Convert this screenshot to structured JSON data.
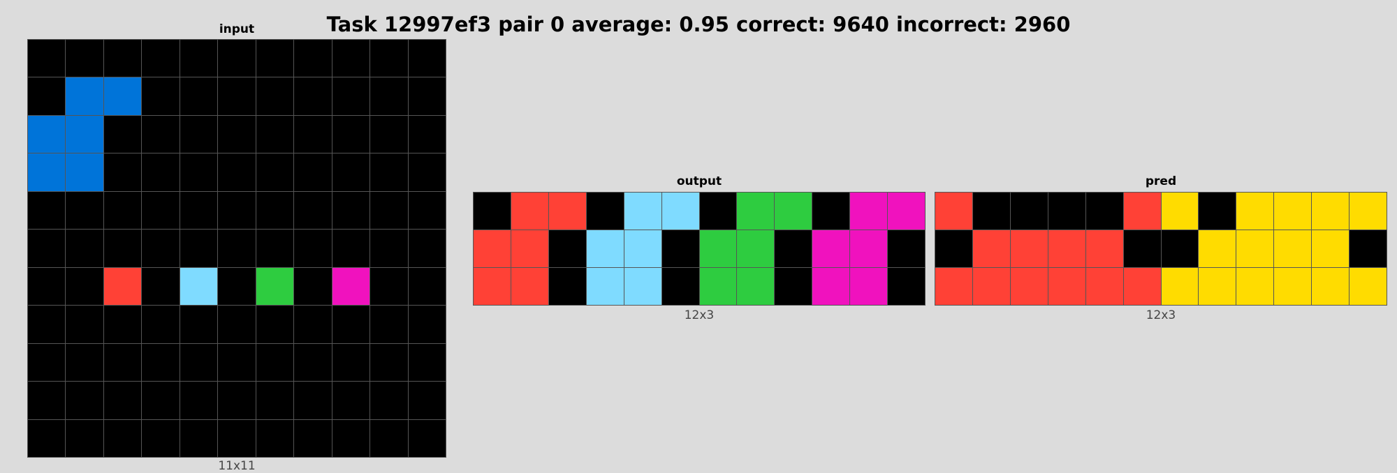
{
  "title": "Task 12997ef3 pair 0 average: 0.95 correct: 9640 incorrect: 2960",
  "palette": {
    "0": "#000000",
    "1": "#0074d9",
    "2": "#ff4136",
    "3": "#2ecc40",
    "4": "#ffdc00",
    "6": "#f012be",
    "8": "#7fdbff"
  },
  "panels": [
    {
      "id": "input",
      "label": "input",
      "dims": "11x11",
      "rows": [
        [
          0,
          0,
          0,
          0,
          0,
          0,
          0,
          0,
          0,
          0,
          0
        ],
        [
          0,
          1,
          1,
          0,
          0,
          0,
          0,
          0,
          0,
          0,
          0
        ],
        [
          1,
          1,
          0,
          0,
          0,
          0,
          0,
          0,
          0,
          0,
          0
        ],
        [
          1,
          1,
          0,
          0,
          0,
          0,
          0,
          0,
          0,
          0,
          0
        ],
        [
          0,
          0,
          0,
          0,
          0,
          0,
          0,
          0,
          0,
          0,
          0
        ],
        [
          0,
          0,
          0,
          0,
          0,
          0,
          0,
          0,
          0,
          0,
          0
        ],
        [
          0,
          0,
          2,
          0,
          8,
          0,
          3,
          0,
          6,
          0,
          0
        ],
        [
          0,
          0,
          0,
          0,
          0,
          0,
          0,
          0,
          0,
          0,
          0
        ],
        [
          0,
          0,
          0,
          0,
          0,
          0,
          0,
          0,
          0,
          0,
          0
        ],
        [
          0,
          0,
          0,
          0,
          0,
          0,
          0,
          0,
          0,
          0,
          0
        ],
        [
          0,
          0,
          0,
          0,
          0,
          0,
          0,
          0,
          0,
          0,
          0
        ]
      ]
    },
    {
      "id": "output",
      "label": "output",
      "dims": "12x3",
      "rows": [
        [
          0,
          2,
          2,
          0,
          8,
          8,
          0,
          3,
          3,
          0,
          6,
          6
        ],
        [
          2,
          2,
          0,
          8,
          8,
          0,
          3,
          3,
          0,
          6,
          6,
          0
        ],
        [
          2,
          2,
          0,
          8,
          8,
          0,
          3,
          3,
          0,
          6,
          6,
          0
        ]
      ]
    },
    {
      "id": "pred",
      "label": "pred",
      "dims": "12x3",
      "rows": [
        [
          2,
          0,
          0,
          0,
          0,
          2,
          4,
          0,
          4,
          4,
          4,
          4
        ],
        [
          0,
          2,
          2,
          2,
          2,
          0,
          0,
          4,
          4,
          4,
          4,
          0
        ],
        [
          2,
          2,
          2,
          2,
          2,
          2,
          4,
          4,
          4,
          4,
          4,
          4
        ]
      ]
    }
  ]
}
